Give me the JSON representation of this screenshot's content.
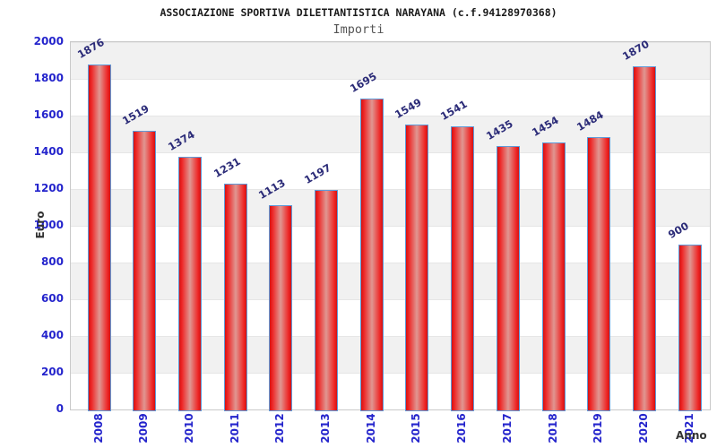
{
  "chart_data": {
    "type": "bar",
    "title": "ASSOCIAZIONE SPORTIVA DILETTANTISTICA NARAYANA (c.f.94128970368)",
    "subtitle": "Importi",
    "xlabel": "Anno",
    "ylabel": "Euro",
    "categories": [
      "2008",
      "2009",
      "2010",
      "2011",
      "2012",
      "2013",
      "2014",
      "2015",
      "2016",
      "2017",
      "2018",
      "2019",
      "2020",
      "2021"
    ],
    "values": [
      1876,
      1519,
      1374,
      1231,
      1113,
      1197,
      1695,
      1549,
      1541,
      1435,
      1454,
      1484,
      1870,
      900
    ],
    "ylim": [
      0,
      2000
    ],
    "yticks": [
      0,
      200,
      400,
      600,
      800,
      1000,
      1200,
      1400,
      1600,
      1800,
      2000
    ],
    "grid": "horizontal alternating gray/white bands every 200 units, gray band at top",
    "legend": "none",
    "value_label_rotation_deg": -30,
    "x_label_rotation_deg": -90,
    "colors": {
      "title_color": "#1a1a1a",
      "subtitle_color": "#555555",
      "axis_label_blue": "#2424cc",
      "value_label_navy": "#2b2b78",
      "axis_title_color": "#333333",
      "bar_edge_red": "#d31212",
      "bar_red": "#ee2525",
      "bar_center_highlight": "#e09792",
      "bar_border_blue": "#5f9ad8",
      "band_gray": "#f1f1f1",
      "grid_line": "#e6e6e6",
      "plot_border": "#c9c9c9",
      "background": "#ffffff"
    }
  }
}
